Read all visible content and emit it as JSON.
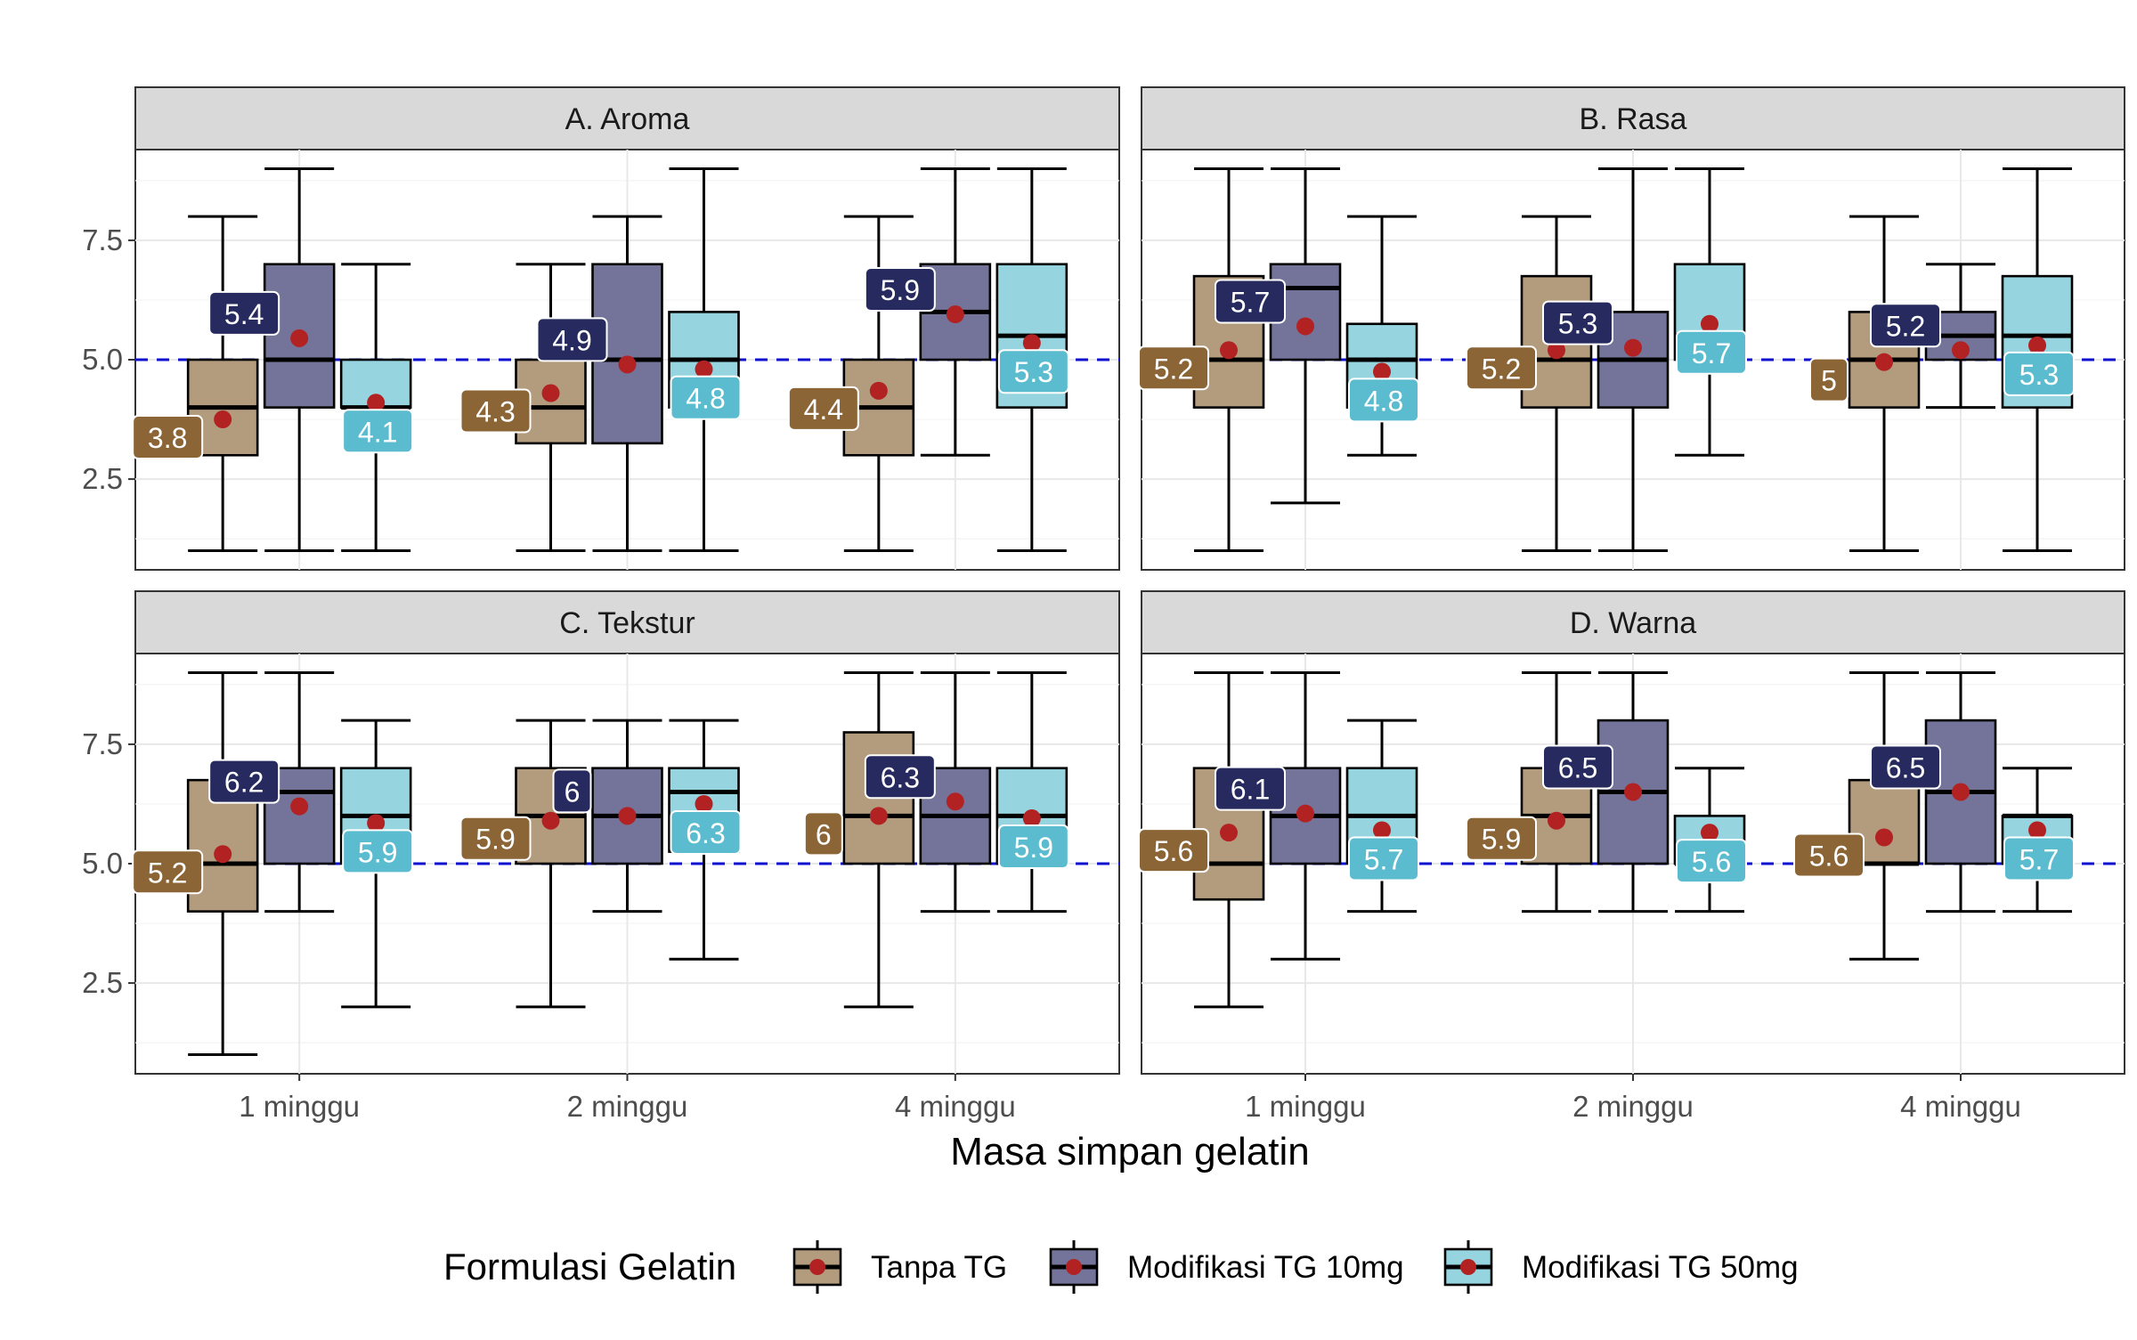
{
  "chart_data": {
    "type": "boxplot",
    "xlabel": "Masa simpan gelatin",
    "ylabel": "",
    "ylim": [
      0.6,
      9.4
    ],
    "yticks": [
      2.5,
      5.0,
      7.5
    ],
    "ytick_labels": [
      "2.5",
      "5.0",
      "7.5"
    ],
    "reference_line": {
      "y": 5.0,
      "style": "dashed",
      "color": "#1010d0"
    },
    "categories": [
      "1 minggu",
      "2 minggu",
      "4 minggu"
    ],
    "legend": {
      "title": "Formulasi Gelatin",
      "position": "bottom",
      "entries": [
        "Tanpa TG",
        "Modifikasi TG 10mg",
        "Modifikasi TG 50mg"
      ]
    },
    "series_colors": {
      "box_fill": [
        "#b39b7e",
        "#74749a",
        "#96d4e0"
      ],
      "label_fill": [
        "#8b6535",
        "#262a5e",
        "#5bbccf"
      ]
    },
    "mean_color": "#b22222",
    "grid": true,
    "facets": [
      {
        "title": "A. Aroma",
        "groups": [
          [
            {
              "min": 1,
              "q1": 3,
              "median": 4,
              "q3": 5,
              "max": 8,
              "mean": 3.75,
              "label": "3.8"
            },
            {
              "min": 1,
              "q1": 4,
              "median": 5,
              "q3": 7,
              "max": 9,
              "mean": 5.45,
              "label": "5.4"
            },
            {
              "min": 1,
              "q1": 4,
              "median": 4,
              "q3": 5,
              "max": 7,
              "mean": 4.1,
              "label": "4.1"
            }
          ],
          [
            {
              "min": 1,
              "q1": 3.25,
              "median": 4,
              "q3": 5,
              "max": 7,
              "mean": 4.3,
              "label": "4.3"
            },
            {
              "min": 1,
              "q1": 3.25,
              "median": 5,
              "q3": 7,
              "max": 8,
              "mean": 4.9,
              "label": "4.9"
            },
            {
              "min": 1,
              "q1": 4,
              "median": 5,
              "q3": 6,
              "max": 9,
              "mean": 4.8,
              "label": "4.8"
            }
          ],
          [
            {
              "min": 1,
              "q1": 3,
              "median": 4,
              "q3": 5,
              "max": 8,
              "mean": 4.35,
              "label": "4.4"
            },
            {
              "min": 3,
              "q1": 5,
              "median": 6,
              "q3": 7,
              "max": 9,
              "mean": 5.95,
              "label": "5.9"
            },
            {
              "min": 1,
              "q1": 4,
              "median": 5.5,
              "q3": 7,
              "max": 9,
              "mean": 5.35,
              "label": "5.3"
            }
          ]
        ]
      },
      {
        "title": "B. Rasa",
        "groups": [
          [
            {
              "min": 1,
              "q1": 4,
              "median": 5,
              "q3": 6.75,
              "max": 9,
              "mean": 5.2,
              "label": "5.2"
            },
            {
              "min": 2,
              "q1": 5,
              "median": 6.5,
              "q3": 7,
              "max": 9,
              "mean": 5.7,
              "label": "5.7"
            },
            {
              "min": 3,
              "q1": 4,
              "median": 5,
              "q3": 5.75,
              "max": 8,
              "mean": 4.75,
              "label": "4.8"
            }
          ],
          [
            {
              "min": 1,
              "q1": 4,
              "median": 5,
              "q3": 6.75,
              "max": 8,
              "mean": 5.2,
              "label": "5.2"
            },
            {
              "min": 1,
              "q1": 4,
              "median": 5,
              "q3": 6,
              "max": 9,
              "mean": 5.25,
              "label": "5.3"
            },
            {
              "min": 3,
              "q1": 5,
              "median": 5.5,
              "q3": 7,
              "max": 9,
              "mean": 5.75,
              "label": "5.7"
            }
          ],
          [
            {
              "min": 1,
              "q1": 4,
              "median": 5,
              "q3": 6,
              "max": 8,
              "mean": 4.95,
              "label": "5"
            },
            {
              "min": 4,
              "q1": 5,
              "median": 5.5,
              "q3": 6,
              "max": 7,
              "mean": 5.2,
              "label": "5.2"
            },
            {
              "min": 1,
              "q1": 4,
              "median": 5.5,
              "q3": 6.75,
              "max": 9,
              "mean": 5.3,
              "label": "5.3"
            }
          ]
        ]
      },
      {
        "title": "C. Tekstur",
        "groups": [
          [
            {
              "min": 1,
              "q1": 4,
              "median": 5,
              "q3": 6.75,
              "max": 9,
              "mean": 5.2,
              "label": "5.2"
            },
            {
              "min": 4,
              "q1": 5,
              "median": 6.5,
              "q3": 7,
              "max": 9,
              "mean": 6.2,
              "label": "6.2"
            },
            {
              "min": 2,
              "q1": 5,
              "median": 6,
              "q3": 7,
              "max": 8,
              "mean": 5.85,
              "label": "5.9"
            }
          ],
          [
            {
              "min": 2,
              "q1": 5,
              "median": 6,
              "q3": 7,
              "max": 8,
              "mean": 5.9,
              "label": "5.9"
            },
            {
              "min": 4,
              "q1": 5,
              "median": 6,
              "q3": 7,
              "max": 8,
              "mean": 6.0,
              "label": "6"
            },
            {
              "min": 3,
              "q1": 5.25,
              "median": 6.5,
              "q3": 7,
              "max": 8,
              "mean": 6.25,
              "label": "6.3"
            }
          ],
          [
            {
              "min": 2,
              "q1": 5,
              "median": 6,
              "q3": 7.75,
              "max": 9,
              "mean": 6.0,
              "label": "6"
            },
            {
              "min": 4,
              "q1": 5,
              "median": 6,
              "q3": 7,
              "max": 9,
              "mean": 6.3,
              "label": "6.3"
            },
            {
              "min": 4,
              "q1": 5,
              "median": 6,
              "q3": 7,
              "max": 9,
              "mean": 5.95,
              "label": "5.9"
            }
          ]
        ]
      },
      {
        "title": "D. Warna",
        "groups": [
          [
            {
              "min": 2,
              "q1": 4.25,
              "median": 5,
              "q3": 7,
              "max": 9,
              "mean": 5.65,
              "label": "5.6"
            },
            {
              "min": 3,
              "q1": 5,
              "median": 6,
              "q3": 7,
              "max": 9,
              "mean": 6.05,
              "label": "6.1"
            },
            {
              "min": 4,
              "q1": 5,
              "median": 6,
              "q3": 7,
              "max": 8,
              "mean": 5.7,
              "label": "5.7"
            }
          ],
          [
            {
              "min": 4,
              "q1": 5,
              "median": 6,
              "q3": 7,
              "max": 9,
              "mean": 5.9,
              "label": "5.9"
            },
            {
              "min": 4,
              "q1": 5,
              "median": 6.5,
              "q3": 8,
              "max": 9,
              "mean": 6.5,
              "label": "6.5"
            },
            {
              "min": 4,
              "q1": 5,
              "median": 5,
              "q3": 6,
              "max": 7,
              "mean": 5.65,
              "label": "5.6"
            }
          ],
          [
            {
              "min": 3,
              "q1": 5,
              "median": 5,
              "q3": 6.75,
              "max": 9,
              "mean": 5.55,
              "label": "5.6"
            },
            {
              "min": 4,
              "q1": 5,
              "median": 6.5,
              "q3": 8,
              "max": 9,
              "mean": 6.5,
              "label": "6.5"
            },
            {
              "min": 4,
              "q1": 5,
              "median": 6,
              "q3": 6,
              "max": 7,
              "mean": 5.7,
              "label": "5.7"
            }
          ]
        ]
      }
    ]
  }
}
